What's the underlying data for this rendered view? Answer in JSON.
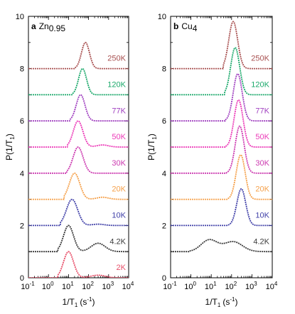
{
  "chart_data": [
    {
      "type": "line",
      "panel_letter": "a",
      "title": "Zn",
      "title_subscript": "0.95",
      "xlabel": "1/T",
      "xlabel_sub": "1",
      "xlabel_unit": "(s",
      "xlabel_unit_sup": "-1",
      "xlabel_tail": ")",
      "ylabel": "P(1/T",
      "ylabel_sub": "1",
      "ylabel_tail": ")",
      "xscale": "log",
      "xlim": [
        0.1,
        10000
      ],
      "ylim": [
        0,
        10
      ],
      "x_ticks": [
        0.1,
        1,
        10,
        100,
        1000,
        10000
      ],
      "x_tick_labels": [
        "10",
        "10",
        "10",
        "10",
        "10",
        "10"
      ],
      "x_tick_label_exps": [
        "-1",
        "0",
        "1",
        "2",
        "3",
        "4"
      ],
      "y_ticks": [
        0,
        2,
        4,
        6,
        8,
        10
      ],
      "y_tick_labels": [
        "0",
        "2",
        "4",
        "6",
        "8",
        "10"
      ],
      "series": [
        {
          "name": "2K",
          "color": "#e8506a",
          "offset": 0,
          "components": [
            {
              "center": 10,
              "width": 0.25,
              "amp": 1.0
            },
            {
              "center": 300,
              "width": 0.35,
              "amp": 0.1
            }
          ],
          "range": [
            3,
            10000
          ]
        },
        {
          "name": "4.2K",
          "color": "#3a3a3a",
          "offset": 1,
          "components": [
            {
              "center": 10,
              "width": 0.25,
              "amp": 1.0
            },
            {
              "center": 300,
              "width": 0.35,
              "amp": 0.32
            }
          ],
          "range": [
            3,
            10000
          ]
        },
        {
          "name": "10K",
          "color": "#4040a8",
          "offset": 2,
          "components": [
            {
              "center": 15,
              "width": 0.28,
              "amp": 1.0
            },
            {
              "center": 300,
              "width": 0.3,
              "amp": 0.05
            }
          ],
          "range": [
            4,
            10000
          ]
        },
        {
          "name": "20K",
          "color": "#f5a04a",
          "offset": 3,
          "components": [
            {
              "center": 20,
              "width": 0.26,
              "amp": 1.0
            },
            {
              "center": 500,
              "width": 0.3,
              "amp": 0.08
            }
          ],
          "range": [
            6,
            10000
          ]
        },
        {
          "name": "30K",
          "color": "#cc3ab0",
          "offset": 4,
          "components": [
            {
              "center": 30,
              "width": 0.25,
              "amp": 1.0
            }
          ],
          "range": [
            8,
            10000
          ]
        },
        {
          "name": "50K",
          "color": "#ec3ab8",
          "offset": 5,
          "components": [
            {
              "center": 30,
              "width": 0.24,
              "amp": 1.0
            },
            {
              "center": 500,
              "width": 0.3,
              "amp": 0.08
            }
          ],
          "range": [
            9,
            10000
          ]
        },
        {
          "name": "77K",
          "color": "#a040c0",
          "offset": 6,
          "components": [
            {
              "center": 40,
              "width": 0.22,
              "amp": 1.0
            }
          ],
          "range": [
            12,
            10000
          ]
        },
        {
          "name": "120K",
          "color": "#1aa86a",
          "offset": 7,
          "components": [
            {
              "center": 50,
              "width": 0.2,
              "amp": 1.0
            }
          ],
          "range": [
            15,
            10000
          ]
        },
        {
          "name": "250K",
          "color": "#a85050",
          "offset": 8,
          "components": [
            {
              "center": 70,
              "width": 0.2,
              "amp": 1.0
            }
          ],
          "range": [
            20,
            10000
          ]
        }
      ]
    },
    {
      "type": "line",
      "panel_letter": "b",
      "title": "Cu",
      "title_subscript": "4",
      "xlabel": "1/T",
      "xlabel_sub": "1",
      "xlabel_unit": "(s",
      "xlabel_unit_sup": "-1",
      "xlabel_tail": ")",
      "ylabel": "P(1/T",
      "ylabel_sub": "1",
      "ylabel_tail": ")",
      "xscale": "log",
      "xlim": [
        0.1,
        10000
      ],
      "ylim": [
        0,
        10
      ],
      "x_ticks": [
        0.1,
        1,
        10,
        100,
        1000,
        10000
      ],
      "x_tick_labels": [
        "10",
        "10",
        "10",
        "10",
        "10",
        "10"
      ],
      "x_tick_label_exps": [
        "-1",
        "0",
        "1",
        "2",
        "3",
        "4"
      ],
      "y_ticks": [
        0,
        2,
        4,
        6,
        8,
        10
      ],
      "y_tick_labels": [
        "0",
        "2",
        "4",
        "6",
        "8",
        "10"
      ],
      "series": [
        {
          "name": "4.2K",
          "color": "#3a3a3a",
          "offset": 1,
          "components": [
            {
              "center": 8,
              "width": 0.4,
              "amp": 0.45
            },
            {
              "center": 120,
              "width": 0.45,
              "amp": 0.38
            }
          ],
          "range": [
            0.8,
            10000
          ]
        },
        {
          "name": "10K",
          "color": "#4040a8",
          "offset": 2,
          "components": [
            {
              "center": 300,
              "width": 0.22,
              "amp": 1.4
            }
          ],
          "range": [
            60,
            10000
          ]
        },
        {
          "name": "20K",
          "color": "#f5a04a",
          "offset": 3,
          "components": [
            {
              "center": 280,
              "width": 0.22,
              "amp": 1.7
            }
          ],
          "range": [
            60,
            10000
          ]
        },
        {
          "name": "30K",
          "color": "#cc3ab0",
          "offset": 4,
          "components": [
            {
              "center": 250,
              "width": 0.22,
              "amp": 1.8
            }
          ],
          "range": [
            55,
            10000
          ]
        },
        {
          "name": "50K",
          "color": "#ec3ab8",
          "offset": 5,
          "components": [
            {
              "center": 220,
              "width": 0.22,
              "amp": 1.8
            }
          ],
          "range": [
            50,
            10000
          ]
        },
        {
          "name": "77K",
          "color": "#a040c0",
          "offset": 6,
          "components": [
            {
              "center": 200,
              "width": 0.22,
              "amp": 1.8
            }
          ],
          "range": [
            50,
            10000
          ]
        },
        {
          "name": "120K",
          "color": "#1aa86a",
          "offset": 7,
          "components": [
            {
              "center": 150,
              "width": 0.22,
              "amp": 1.8
            }
          ],
          "range": [
            45,
            10000
          ]
        },
        {
          "name": "250K",
          "color": "#a85050",
          "offset": 8,
          "components": [
            {
              "center": 120,
              "width": 0.22,
              "amp": 1.8
            }
          ],
          "range": [
            40,
            10000
          ]
        }
      ]
    }
  ]
}
